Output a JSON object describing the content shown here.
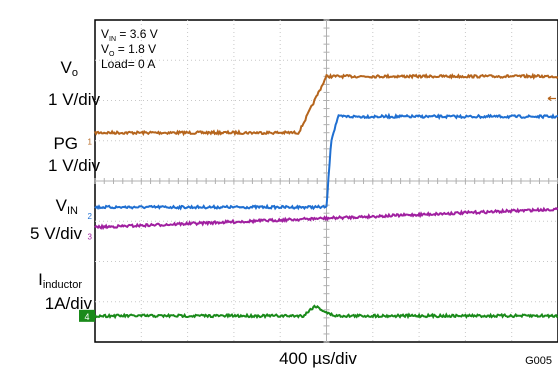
{
  "chart_data": {
    "type": "line",
    "title": "",
    "xlabel": "400 µs/div",
    "figure_id": "G005",
    "x_divisions": 10,
    "y_divisions": 8,
    "grid": true,
    "annotations": [
      {
        "main": "V",
        "sub": "IN",
        "rest": " = 3.6 V"
      },
      {
        "main": "V",
        "sub": "O",
        "rest": " = 1.8 V"
      },
      {
        "main": "Load= 0 A",
        "sub": "",
        "rest": ""
      }
    ],
    "channels": [
      {
        "id": "1",
        "name_main": "V",
        "name_sub": "o",
        "scale": "1 V/div",
        "color": "#b5651d",
        "x_div": [
          0,
          4.4,
          5.0,
          10
        ],
        "y_div": [
          5.2,
          5.2,
          6.6,
          6.6
        ]
      },
      {
        "id": "2",
        "name_main": "PG",
        "name_sub": "",
        "scale": "1 V/div",
        "color": "#1f6fd1",
        "x_div": [
          0,
          5.0,
          5.1,
          5.25,
          10
        ],
        "y_div": [
          3.35,
          3.35,
          5.0,
          5.6,
          5.6
        ]
      },
      {
        "id": "3",
        "name_main": "V",
        "name_sub": "IN",
        "scale": "5 V/div",
        "color": "#a020a0",
        "x_div": [
          0,
          10
        ],
        "y_div": [
          2.85,
          3.3
        ]
      },
      {
        "id": "4",
        "name_main": "I",
        "name_sub": "inductor",
        "scale": "1A/div",
        "color": "#1a8a1a",
        "x_div": [
          0,
          4.5,
          4.6,
          4.75,
          4.9,
          5.05,
          5.2,
          10
        ],
        "y_div": [
          0.65,
          0.65,
          0.75,
          0.9,
          0.8,
          0.7,
          0.65,
          0.65
        ]
      }
    ]
  }
}
